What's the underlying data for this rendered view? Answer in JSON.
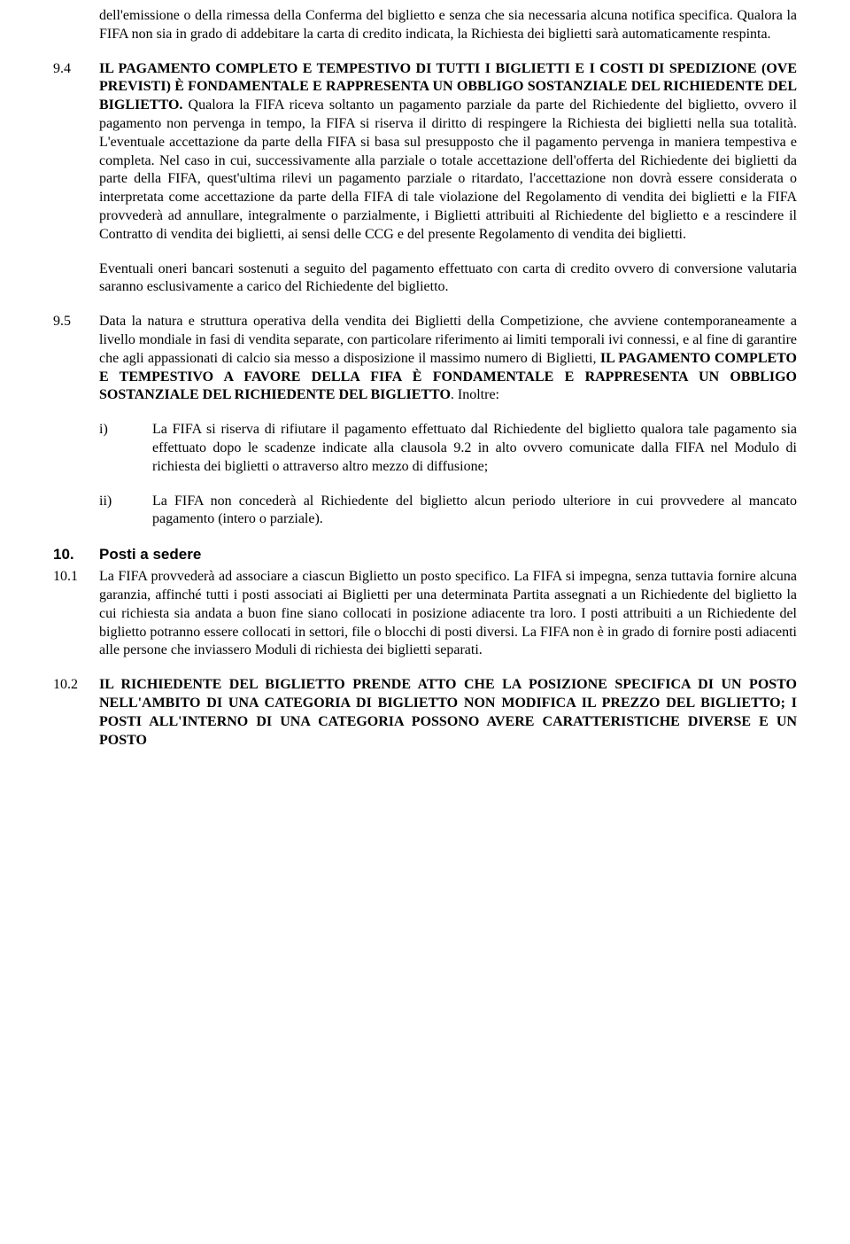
{
  "para_93_cont": "dell'emissione o della rimessa della Conferma del biglietto e senza che sia necessaria alcuna notifica specifica. Qualora la FIFA non sia in grado di addebitare la carta di credito indicata, la Richiesta dei biglietti sarà automaticamente respinta.",
  "clause_94_num": "9.4",
  "clause_94_bold": "IL PAGAMENTO COMPLETO E TEMPESTIVO DI TUTTI I BIGLIETTI E I COSTI DI SPEDIZIONE (OVE PREVISTI) È FONDAMENTALE E RAPPRESENTA UN OBBLIGO SOSTANZIALE DEL RICHIEDENTE DEL BIGLIETTO.",
  "clause_94_rest": " Qualora la FIFA riceva soltanto un pagamento parziale da parte del Richiedente del biglietto, ovvero il pagamento non pervenga in tempo, la FIFA si riserva il diritto di respingere la Richiesta dei biglietti nella sua totalità. L'eventuale accettazione da parte della FIFA si basa sul presupposto che il pagamento pervenga in maniera tempestiva e completa. Nel caso in cui, successivamente alla parziale o totale accettazione dell'offerta del Richiedente dei biglietti da parte della FIFA, quest'ultima rilevi un pagamento parziale o ritardato, l'accettazione non dovrà essere considerata o interpretata come accettazione da parte della FIFA di tale violazione del Regolamento di vendita dei biglietti e la FIFA provvederà ad annullare, integralmente o parzialmente, i Biglietti attribuiti al Richiedente del biglietto e a rescindere il Contratto di vendita dei biglietti, ai sensi delle CCG e del presente Regolamento di vendita dei biglietti.",
  "clause_94_para2": "Eventuali oneri bancari sostenuti a seguito del pagamento effettuato con carta di credito ovvero di conversione valutaria saranno esclusivamente a carico del Richiedente del biglietto.",
  "clause_95_num": "9.5",
  "clause_95_text1": "Data la natura e struttura operativa della vendita dei Biglietti della Competizione, che avviene contemporaneamente a livello mondiale in fasi di vendita separate, con particolare riferimento ai limiti temporali ivi connessi, e al fine di garantire che agli appassionati di calcio sia messo a disposizione il massimo numero di Biglietti, ",
  "clause_95_bold": "IL PAGAMENTO COMPLETO E TEMPESTIVO A FAVORE DELLA FIFA È FONDAMENTALE E RAPPRESENTA UN OBBLIGO SOSTANZIALE DEL RICHIEDENTE DEL BIGLIETTO",
  "clause_95_text2": ". Inoltre:",
  "sub_i_num": "i)",
  "sub_i_text": "La FIFA si riserva di rifiutare il pagamento effettuato dal Richiedente del biglietto qualora tale pagamento sia effettuato dopo le scadenze indicate alla clausola 9.2 in alto ovvero comunicate dalla FIFA nel Modulo di richiesta dei biglietti o attraverso altro mezzo di diffusione;",
  "sub_ii_num": "ii)",
  "sub_ii_text": "La FIFA non concederà al Richiedente del biglietto alcun periodo ulteriore in cui provvedere al mancato pagamento (intero o parziale).",
  "section_10_num": "10.",
  "section_10_title": "Posti a sedere",
  "clause_101_num": "10.1",
  "clause_101_text": "La FIFA provvederà ad associare a ciascun Biglietto un posto specifico. La FIFA si impegna, senza tuttavia fornire alcuna garanzia, affinché tutti i posti associati ai Biglietti per una determinata Partita assegnati a un Richiedente del biglietto la cui richiesta sia andata a buon fine siano collocati in posizione adiacente tra loro. I posti attribuiti a un Richiedente del biglietto potranno essere collocati in settori, file o blocchi di posti diversi. La FIFA non è in grado di fornire posti adiacenti alle persone che inviassero Moduli di richiesta dei biglietti separati.",
  "clause_102_num": "10.2",
  "clause_102_bold": "IL RICHIEDENTE DEL BIGLIETTO PRENDE ATTO CHE LA POSIZIONE SPECIFICA DI UN POSTO NELL'AMBITO DI UNA CATEGORIA DI BIGLIETTO NON MODIFICA IL PREZZO DEL BIGLIETTO; I POSTI ALL'INTERNO DI UNA CATEGORIA POSSONO AVERE CARATTERISTICHE DIVERSE E UN POSTO"
}
